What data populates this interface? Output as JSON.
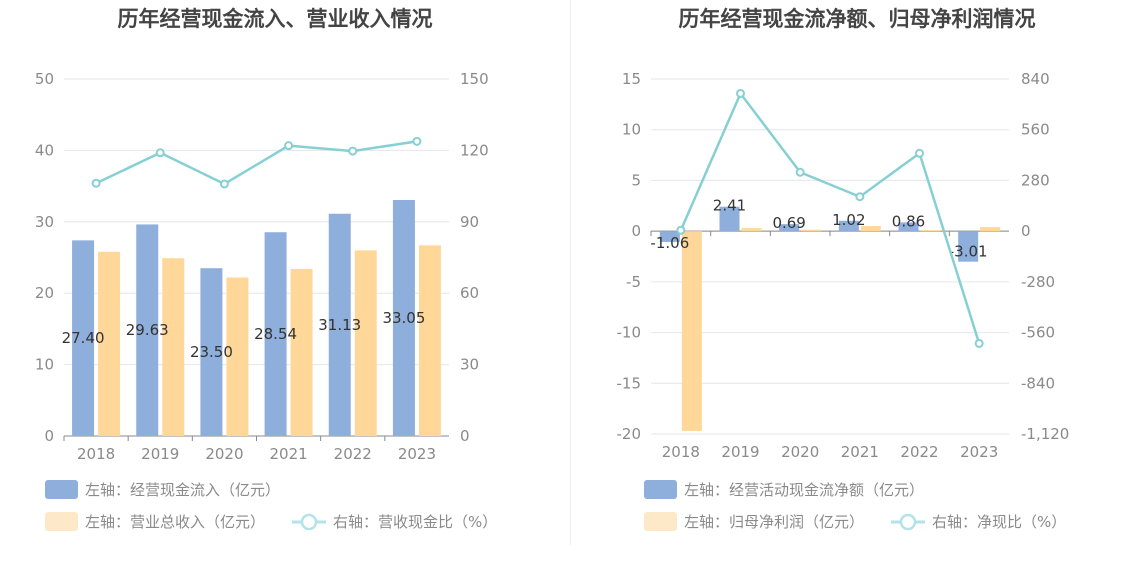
{
  "charts": [
    {
      "title": "历年经营现金流入、营业收入情况",
      "categories": [
        "2018",
        "2019",
        "2020",
        "2021",
        "2022",
        "2023"
      ],
      "left_axis": {
        "ticks": [
          0,
          10,
          20,
          30,
          40,
          50
        ],
        "range": [
          0,
          50
        ]
      },
      "right_axis": {
        "ticks": [
          0,
          30,
          60,
          90,
          120,
          150
        ],
        "range": [
          0,
          150
        ]
      },
      "bars": [
        {
          "name": "左轴：经营现金流入（亿元）",
          "color": "#8eaedb",
          "values": [
            27.4,
            29.63,
            23.5,
            28.54,
            31.13,
            33.05
          ],
          "labels": [
            "27.40",
            "29.63",
            "23.50",
            "28.54",
            "31.13",
            "33.05"
          ]
        },
        {
          "name": "左轴：营业总收入（亿元）",
          "color": "#ffd899",
          "legend_color": "#fde9c8",
          "values": [
            25.8,
            24.9,
            22.2,
            23.4,
            26.0,
            26.7
          ]
        }
      ],
      "line": {
        "name": "右轴：营收现金比（%）",
        "color": "#86d0d4",
        "values": [
          106.2,
          119.0,
          105.9,
          122.0,
          119.7,
          123.8
        ]
      }
    },
    {
      "title": "历年经营现金流净额、归母净利润情况",
      "categories": [
        "2018",
        "2019",
        "2020",
        "2021",
        "2022",
        "2023"
      ],
      "left_axis": {
        "ticks": [
          15,
          10,
          5,
          0,
          -5,
          -10,
          -15,
          -20
        ],
        "range": [
          -20,
          15
        ]
      },
      "right_axis": {
        "ticks": [
          "840",
          "560",
          "280",
          "0",
          "-280",
          "-560",
          "-840",
          "-1,120"
        ],
        "range": [
          -1120,
          840
        ]
      },
      "bars": [
        {
          "name": "左轴：经营活动现金流净额（亿元）",
          "color": "#8eaedb",
          "values": [
            -1.06,
            2.41,
            0.69,
            1.02,
            0.86,
            -3.01
          ],
          "labels": [
            "-1.06",
            "2.41",
            "0.69",
            "1.02",
            "0.86",
            "-3.01"
          ]
        },
        {
          "name": "左轴：归母净利润（亿元）",
          "color": "#ffd899",
          "legend_color": "#fde9c8",
          "values": [
            -19.7,
            0.3,
            0.15,
            0.5,
            0.1,
            0.4
          ]
        }
      ],
      "line": {
        "name": "右轴：净现比（%）",
        "color": "#86d0d4",
        "values": [
          5,
          760,
          325,
          190,
          430,
          -620
        ]
      }
    }
  ]
}
